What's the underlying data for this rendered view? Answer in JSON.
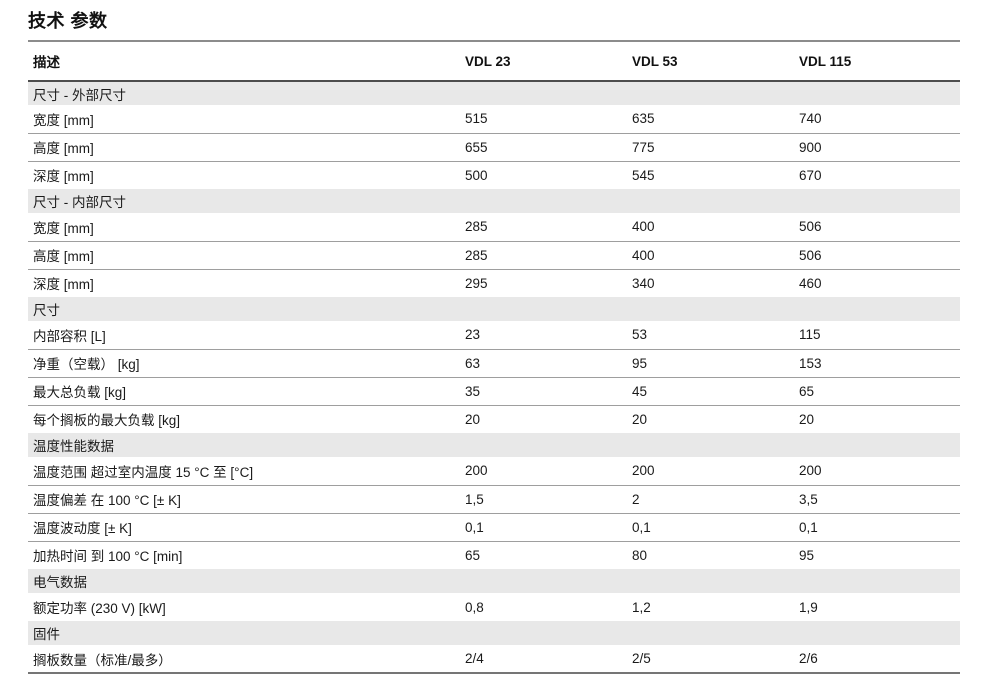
{
  "page_title": "技术 参数",
  "table": {
    "header": {
      "description_label": "描述",
      "columns": [
        "VDL 23",
        "VDL 53",
        "VDL 115"
      ]
    },
    "sections": [
      {
        "title": "尺寸 - 外部尺寸",
        "rows": [
          {
            "label": "宽度 [mm]",
            "values": [
              "515",
              "635",
              "740"
            ]
          },
          {
            "label": "高度 [mm]",
            "values": [
              "655",
              "775",
              "900"
            ]
          },
          {
            "label": "深度 [mm]",
            "values": [
              "500",
              "545",
              "670"
            ]
          }
        ]
      },
      {
        "title": "尺寸 - 内部尺寸",
        "rows": [
          {
            "label": "宽度 [mm]",
            "values": [
              "285",
              "400",
              "506"
            ]
          },
          {
            "label": "高度 [mm]",
            "values": [
              "285",
              "400",
              "506"
            ]
          },
          {
            "label": "深度 [mm]",
            "values": [
              "295",
              "340",
              "460"
            ]
          }
        ]
      },
      {
        "title": "尺寸",
        "rows": [
          {
            "label": "内部容积 [L]",
            "values": [
              "23",
              "53",
              "115"
            ]
          },
          {
            "label": "净重（空载） [kg]",
            "values": [
              "63",
              "95",
              "153"
            ]
          },
          {
            "label": "最大总负载 [kg]",
            "values": [
              "35",
              "45",
              "65"
            ]
          },
          {
            "label": "每个搁板的最大负载 [kg]",
            "values": [
              "20",
              "20",
              "20"
            ]
          }
        ]
      },
      {
        "title": "温度性能数据",
        "rows": [
          {
            "label": "温度范围 超过室内温度 15 °C 至 [°C]",
            "values": [
              "200",
              "200",
              "200"
            ]
          },
          {
            "label": "温度偏差 在 100 °C [± K]",
            "values": [
              "1,5",
              "2",
              "3,5"
            ]
          },
          {
            "label": "温度波动度 [± K]",
            "values": [
              "0,1",
              "0,1",
              "0,1"
            ]
          },
          {
            "label": "加热时间 到 100 °C [min]",
            "values": [
              "65",
              "80",
              "95"
            ]
          }
        ]
      },
      {
        "title": "电气数据",
        "rows": [
          {
            "label": "额定功率 (230 V) [kW]",
            "values": [
              "0,8",
              "1,2",
              "1,9"
            ]
          }
        ]
      },
      {
        "title": "固件",
        "rows": [
          {
            "label": "搁板数量（标准/最多）",
            "values": [
              "2/4",
              "2/5",
              "2/6"
            ]
          }
        ]
      }
    ]
  }
}
